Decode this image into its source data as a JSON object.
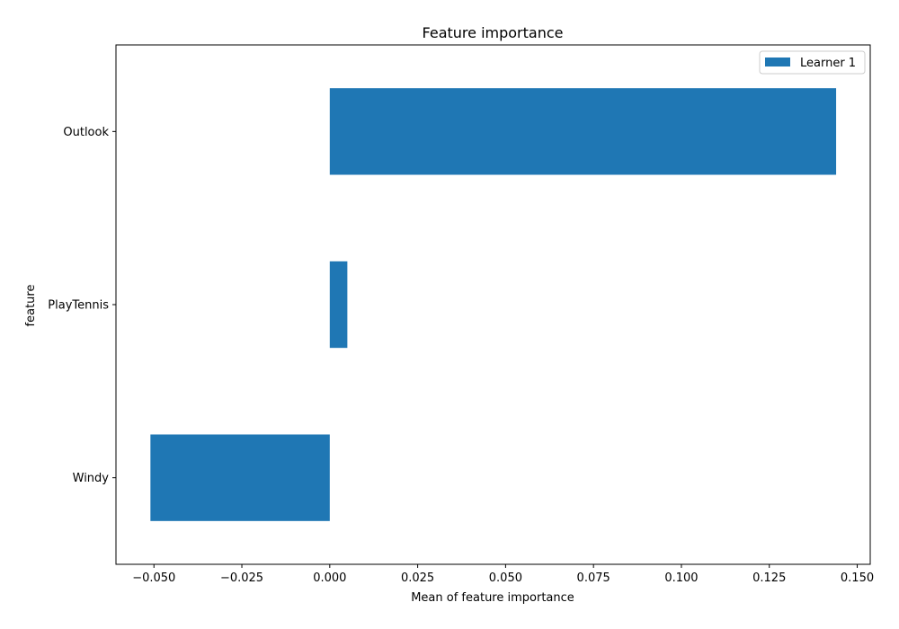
{
  "chart_data": {
    "type": "bar",
    "orientation": "horizontal",
    "title": "Feature importance",
    "xlabel": "Mean of feature importance",
    "ylabel": "feature",
    "categories": [
      "Outlook",
      "PlayTennis",
      "Windy"
    ],
    "series": [
      {
        "name": "Learner 1",
        "values": [
          0.144,
          0.005,
          -0.051
        ],
        "color": "#1f77b4"
      }
    ],
    "xlim": [
      -0.0608,
      0.1537
    ],
    "xticks": [
      -0.05,
      -0.025,
      0.0,
      0.025,
      0.05,
      0.075,
      0.1,
      0.125,
      0.15
    ],
    "xtick_labels": [
      "−0.050",
      "−0.025",
      "0.000",
      "0.025",
      "0.050",
      "0.075",
      "0.100",
      "0.125",
      "0.150"
    ],
    "grid": false,
    "legend_position": "top-right"
  }
}
